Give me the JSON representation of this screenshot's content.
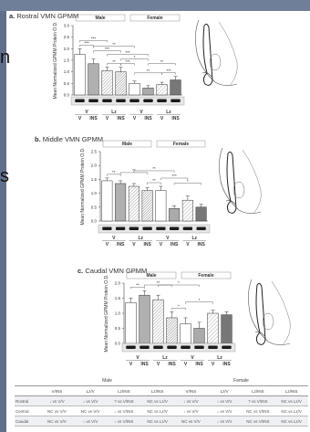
{
  "side_letters": [
    "n",
    "s"
  ],
  "panels": [
    {
      "label": "a.",
      "title": "Rostral VMN GPMM"
    },
    {
      "label": "b.",
      "title": "Middle VMN GPMM"
    },
    {
      "label": "c.",
      "title": "Caudal VMN GPMM"
    }
  ],
  "chart_data": [
    {
      "type": "bar",
      "title": "a. Rostral VMN GPMM",
      "ylabel": "Mean Normalized GPMM Protein O.D.",
      "ylim": [
        0,
        3.0
      ],
      "yticks": [
        "0.0",
        "0.5",
        "1.0",
        "1.5",
        "2.0",
        "2.5",
        "3.0"
      ],
      "groups": [
        "Male",
        "Female"
      ],
      "conditions": [
        "V",
        "Lz"
      ],
      "categories": [
        "V",
        "INS",
        "V",
        "INS",
        "V",
        "INS",
        "V",
        "INS"
      ],
      "values": [
        1.75,
        1.35,
        1.05,
        1.0,
        0.5,
        0.3,
        0.45,
        0.65
      ],
      "errors": [
        0.25,
        0.2,
        0.15,
        0.2,
        0.1,
        0.1,
        0.1,
        0.15
      ],
      "significance": [
        "***",
        "***",
        "***",
        "***",
        "**",
        "**",
        "***",
        "***",
        "**",
        "**",
        "*"
      ],
      "blot_bands": 8,
      "grid": false
    },
    {
      "type": "bar",
      "title": "b. Middle VMN GPMM",
      "ylabel": "Mean Normalized GPMM Protein O.D.",
      "ylim": [
        0,
        2.5
      ],
      "yticks": [
        "0.0",
        "0.5",
        "1.0",
        "1.5",
        "2.0",
        "2.5"
      ],
      "groups": [
        "Male",
        "Female"
      ],
      "conditions": [
        "V",
        "Lz"
      ],
      "categories": [
        "V",
        "INS",
        "V",
        "INS",
        "V",
        "INS",
        "V",
        "INS"
      ],
      "values": [
        1.45,
        1.35,
        1.25,
        1.1,
        1.1,
        0.45,
        0.75,
        0.5
      ],
      "errors": [
        0.1,
        0.1,
        0.1,
        0.1,
        0.15,
        0.1,
        0.15,
        0.1
      ],
      "significance": [
        "**",
        "**",
        "**",
        "**",
        "***",
        "*"
      ],
      "blot_bands": 8,
      "grid": false
    },
    {
      "type": "bar",
      "title": "c. Caudal VMN GPMM",
      "ylabel": "Mean Normalized GPMM Protein O.D.",
      "ylim": [
        0,
        2.0
      ],
      "yticks": [
        "0.0",
        "0.5",
        "1.0",
        "1.5",
        "2.0"
      ],
      "groups": [
        "Male",
        "Female"
      ],
      "conditions": [
        "V",
        "Lz"
      ],
      "categories": [
        "V",
        "INS",
        "V",
        "INS",
        "V",
        "INS",
        "V",
        "INS"
      ],
      "values": [
        1.35,
        1.6,
        1.45,
        0.85,
        0.65,
        0.5,
        1.0,
        0.95
      ],
      "errors": [
        0.15,
        0.15,
        0.15,
        0.2,
        0.2,
        0.2,
        0.1,
        0.1
      ],
      "significance": [
        "**",
        "**",
        "*",
        "*",
        "*"
      ],
      "blot_bands": 8,
      "grid": false
    }
  ],
  "summary_table": {
    "group_headers": [
      "Male",
      "Female"
    ],
    "columns": [
      "V/INS",
      "Lz/V",
      "Lz/INS",
      "Lz/INS",
      "V/INS",
      "Lz/V",
      "Lz/INS",
      "Lz/INS"
    ],
    "rows": [
      {
        "label": "Rostral",
        "cells": [
          "↓ vs V/V",
          "↓ vs V/V",
          "? vs V/INS",
          "NC vs Lz/V",
          "↓ vs V/V",
          "↓ vs V/V",
          "? vs V/INS",
          "NC vs Lz/V"
        ]
      },
      {
        "label": "Central",
        "cells": [
          "NC vs V/V",
          "NC vs V/V",
          "↓ vs V/INS",
          "NC vs Lz/V",
          "↓ vs V/V",
          "↓ vs V/V",
          "NC vs V/INS",
          "NC vs Lz/V"
        ]
      },
      {
        "label": "Caudal",
        "cells": [
          "NC vs V/V",
          "↓ vs V/V",
          "↓ vs V/INS",
          "NC vs Lz/V",
          "NC vs V/V",
          "↓ vs V/V",
          "NC vs V/INS",
          "NC vs Lz/V"
        ]
      }
    ]
  },
  "colors": {
    "bar_fills": [
      "#ffffff",
      "#b0b0b0",
      "#dcdcdc",
      "#cfcfcf",
      "#ffffff",
      "#aaaaaa",
      "#c8c8c8",
      "#777777"
    ],
    "header_bar": "#6f7f9a"
  }
}
